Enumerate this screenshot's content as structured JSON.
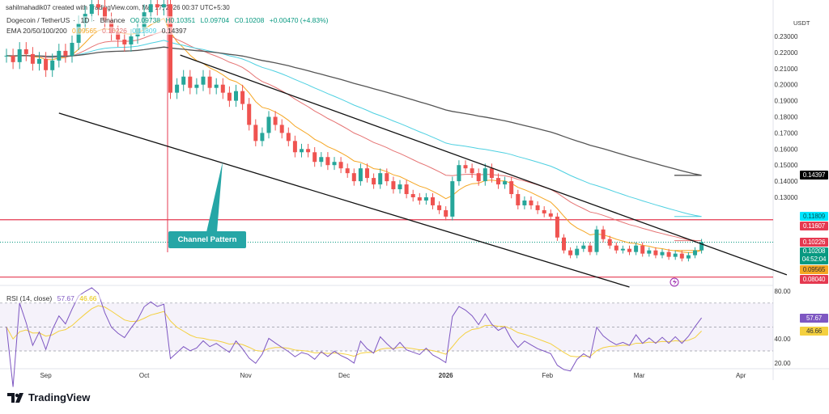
{
  "credit": "sahilmahadik07 created with TradingView.com, Mar 17, 2026 00:37 UTC+5:30",
  "symbol": {
    "name": "Dogecoin / TetherUS",
    "interval": "1D",
    "exchange": "Binance",
    "open": "O0.09738",
    "high": "H0.10351",
    "low": "L0.09704",
    "close": "C0.10208",
    "change": "+0.00470 (+4.83%)"
  },
  "ema_legend": {
    "label": "EMA 20/50/100/200",
    "ema20": "0.09565",
    "ema50": "0.10226",
    "ema100": "0.11809",
    "ema200": "0.14397"
  },
  "currency": "USDT",
  "rsi_legend": {
    "label": "RSI (14, close)",
    "rsi": "57.67",
    "ma": "46.66"
  },
  "callout": "Channel Pattern",
  "logo": "TradingView",
  "colors": {
    "up": "#26a69a",
    "down": "#ef5350",
    "ema20": "#f5a623",
    "ema50": "#e57373",
    "ema100": "#4dd0e1",
    "ema200": "#555555",
    "rsi": "#7e57c2",
    "rsi_ma": "#f4d03f",
    "level": "#e53950"
  },
  "chart_data": {
    "type": "candlestick",
    "interval_days": 2,
    "closes": [
      0.218,
      0.214,
      0.222,
      0.219,
      0.213,
      0.216,
      0.209,
      0.215,
      0.221,
      0.218,
      0.226,
      0.238,
      0.244,
      0.25,
      0.248,
      0.24,
      0.232,
      0.228,
      0.225,
      0.23,
      0.235,
      0.245,
      0.25,
      0.248,
      0.25,
      0.195,
      0.2,
      0.205,
      0.198,
      0.2,
      0.205,
      0.198,
      0.2,
      0.195,
      0.19,
      0.196,
      0.188,
      0.175,
      0.165,
      0.17,
      0.18,
      0.175,
      0.17,
      0.165,
      0.158,
      0.16,
      0.158,
      0.152,
      0.155,
      0.15,
      0.152,
      0.148,
      0.145,
      0.14,
      0.148,
      0.142,
      0.138,
      0.145,
      0.14,
      0.135,
      0.138,
      0.132,
      0.13,
      0.128,
      0.13,
      0.125,
      0.122,
      0.118,
      0.14,
      0.15,
      0.148,
      0.145,
      0.14,
      0.148,
      0.142,
      0.138,
      0.14,
      0.132,
      0.125,
      0.128,
      0.125,
      0.122,
      0.12,
      0.118,
      0.105,
      0.097,
      0.094,
      0.098,
      0.1,
      0.096,
      0.11,
      0.104,
      0.1,
      0.097,
      0.098,
      0.096,
      0.1,
      0.095,
      0.097,
      0.094,
      0.096,
      0.093,
      0.095,
      0.092,
      0.094,
      0.097,
      0.10208
    ],
    "x_ticks": [
      "Sep",
      "Oct",
      "Nov",
      "Dec",
      "2026",
      "Feb",
      "Mar",
      "Apr"
    ],
    "y_ticks": [
      "0.23000",
      "0.22000",
      "0.21000",
      "0.20000",
      "0.19000",
      "0.18000",
      "0.17000",
      "0.16000",
      "0.15000",
      "0.14000",
      "0.13000"
    ],
    "ylim": [
      0.0765,
      0.2526
    ],
    "price_tags": [
      {
        "value": "0.14397",
        "color": "#000000"
      },
      {
        "value": "0.11809",
        "color": "#00e5ff"
      },
      {
        "value": "0.11607",
        "color": "#e53950"
      },
      {
        "value": "0.10226",
        "color": "#e53950"
      },
      {
        "value": "0.10208",
        "color": "#089981",
        "countdown": "04:52:04"
      },
      {
        "value": "0.09565",
        "color": "#f5a623"
      },
      {
        "value": "0.08040",
        "color": "#e53950"
      }
    ],
    "horizontal_levels": [
      0.11607,
      0.0804
    ],
    "channel": {
      "upper": [
        {
          "date": "2025-10-12",
          "price": 0.2184
        },
        {
          "date": "2026-04-15",
          "price": 0.0818
        }
      ],
      "lower": [
        {
          "date": "2025-09-05",
          "price": 0.1823
        },
        {
          "date": "2026-02-26",
          "price": 0.0742
        }
      ]
    },
    "rsi": {
      "ticks": [
        "80.00",
        "40.00",
        "20.00"
      ],
      "band": [
        30,
        70
      ],
      "current": 57.67,
      "ma": 46.66
    }
  }
}
